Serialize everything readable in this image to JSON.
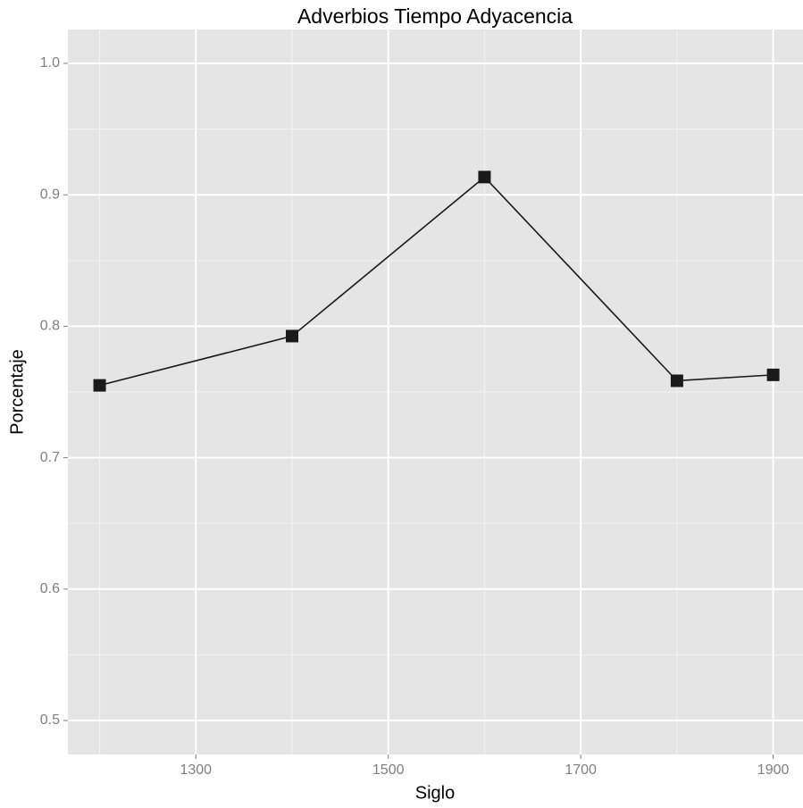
{
  "chart_data": {
    "type": "line",
    "title": "Adverbios Tiempo Adyacencia",
    "x_label": "Siglo",
    "y_label": "Porcentaje",
    "x": [
      1200,
      1400,
      1600,
      1800,
      1900
    ],
    "series": [
      {
        "name": "Porcentaje",
        "color": "#1a1a1a",
        "values": [
          0.755,
          0.7925,
          0.9135,
          0.7585,
          0.763
        ]
      }
    ],
    "xlim": [
      1167,
      1931
    ],
    "xticks": [
      1300,
      1500,
      1700,
      1900
    ],
    "ylim": [
      0.4742,
      1.0258
    ],
    "yticks": [
      {
        "value": 0.5,
        "label": "0.5"
      },
      {
        "value": 0.6,
        "label": "0.6"
      },
      {
        "value": 0.7,
        "label": "0.7"
      },
      {
        "value": 0.8,
        "label": "0.8"
      },
      {
        "value": 0.9,
        "label": "0.9"
      },
      {
        "value": 1.0,
        "label": "1.0"
      }
    ],
    "grid": true,
    "marker": "square"
  }
}
